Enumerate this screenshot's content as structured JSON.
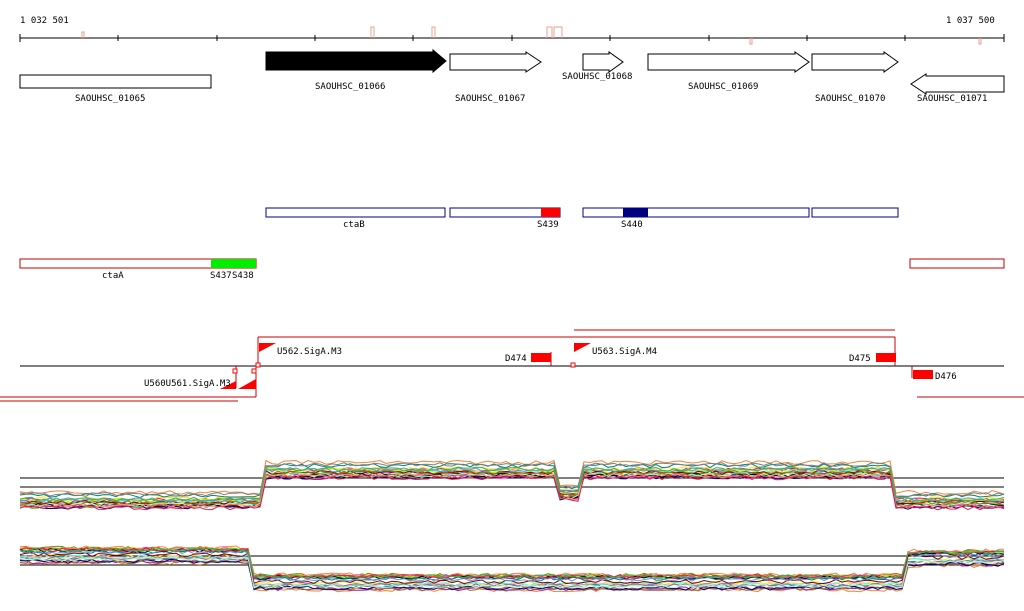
{
  "ruler": {
    "start_label": "1 032 501",
    "end_label": "1 037 500"
  },
  "genes": [
    {
      "name": "SAOUHSC_01065",
      "strand": "none",
      "filled": false
    },
    {
      "name": "SAOUHSC_01066",
      "strand": "+",
      "filled": true
    },
    {
      "name": "SAOUHSC_01067",
      "strand": "+",
      "filled": false
    },
    {
      "name": "SAOUHSC_01068",
      "strand": "+",
      "filled": false
    },
    {
      "name": "SAOUHSC_01069",
      "strand": "+",
      "filled": false
    },
    {
      "name": "SAOUHSC_01070",
      "strand": "+",
      "filled": false
    },
    {
      "name": "SAOUHSC_01071",
      "strand": "-",
      "filled": false
    }
  ],
  "operons": {
    "ctaB": "ctaB",
    "ctaA": "ctaA"
  },
  "segments": {
    "S437": "S437",
    "S438": "S438",
    "S439": "S439",
    "S440": "S440"
  },
  "transcription": {
    "U562": "U562.SigA.M3",
    "U563": "U563.SigA.M4",
    "U560_overlap": "U560U561.SigA.M3",
    "D474": "D474",
    "D475": "D475",
    "D476": "D476"
  },
  "colors": {
    "gene_outline": "#000000",
    "operon_blue": "#00008b",
    "operon_red": "#cc0000",
    "segment_red": "#ff0000",
    "segment_green": "#00ee00",
    "segment_navy": "#000080",
    "tick_salmon": "#e8a090",
    "track_line": "#000000"
  }
}
